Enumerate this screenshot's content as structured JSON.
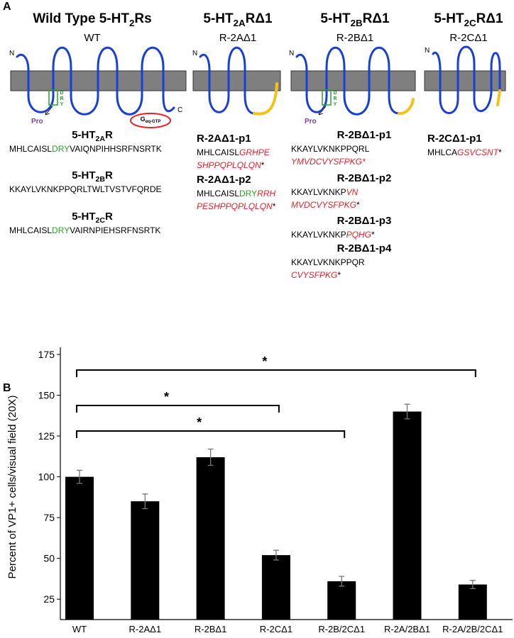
{
  "panel_a": {
    "label": "A",
    "columns": [
      {
        "title": [
          "Wild Type 5-HT",
          "2",
          "Rs"
        ],
        "subtitle": "WT",
        "n": "N",
        "c": "C",
        "pro": "Pro",
        "dry": [
          "D",
          "R",
          "Y"
        ],
        "g_protein": [
          "G",
          "αq-GTP"
        ],
        "entries": [
          {
            "name": [
              "5-HT",
              "2A",
              "R"
            ],
            "lines": [
              [
                "MHLCAISL",
                {
                  "text": "DRY",
                  "color": "#2ca02c"
                },
                "VAIQNPIHHSRFNSRTK"
              ]
            ]
          },
          {
            "name": [
              "5-HT",
              "2B",
              "R"
            ],
            "lines": [
              [
                "KKAYLVKNKPPQRLTWLTVSTVFQRDE"
              ]
            ]
          },
          {
            "name": [
              "5-HT",
              "2C",
              "R"
            ],
            "lines": [
              [
                "MHLCAISL",
                {
                  "text": "DRY",
                  "color": "#2ca02c"
                },
                "VAIRNPIEHSRFNSRTK"
              ]
            ]
          }
        ]
      },
      {
        "title": [
          "5-HT",
          "2A",
          "RΔ1"
        ],
        "subtitle": "R-2AΔ1",
        "n": "N",
        "entries": [
          {
            "name": [
              "R-2AΔ1-p1"
            ],
            "lines": [
              [
                "MHLCAISL",
                {
                  "text": "GRHPE",
                  "color": "#e8202a",
                  "italic": true
                }
              ],
              [
                {
                  "text": "SHPPQPLQLQN",
                  "color": "#e8202a",
                  "italic": true
                },
                "*"
              ]
            ]
          },
          {
            "name": [
              "R-2AΔ1-p2"
            ],
            "lines": [
              [
                "MHLCAISL",
                {
                  "text": "DRY",
                  "color": "#2ca02c"
                },
                {
                  "text": "RRH",
                  "color": "#e8202a",
                  "italic": true
                }
              ],
              [
                {
                  "text": "PESHPPQPLQLQN",
                  "color": "#e8202a",
                  "italic": true
                },
                "*"
              ]
            ]
          }
        ]
      },
      {
        "title": [
          "5-HT",
          "2B",
          "RΔ1"
        ],
        "subtitle": "R-2BΔ1",
        "n": "N",
        "pro": "Pro",
        "dry": [
          "D",
          "R",
          "Y"
        ],
        "entries": [
          {
            "name": [
              "R-2BΔ1-p1"
            ],
            "lines": [
              [
                "KKAYLVKNKPPQRL"
              ],
              [
                {
                  "text": "YMVDCVYSFPKG*",
                  "color": "#e8202a",
                  "italic": true
                }
              ]
            ]
          },
          {
            "name": [
              "R-2BΔ1-p2"
            ],
            "lines": [
              [
                "KKAYLVKNKP",
                {
                  "text": "VN",
                  "color": "#e8202a",
                  "italic": true
                }
              ],
              [
                {
                  "text": "MVDCVYSFPKG",
                  "color": "#e8202a",
                  "italic": true
                },
                "*"
              ]
            ]
          },
          {
            "name": [
              "R-2BΔ1-p3"
            ],
            "lines": [
              [
                "KKAYLVKNKP",
                {
                  "text": "PQHG",
                  "color": "#e8202a",
                  "italic": true
                },
                "*"
              ]
            ]
          },
          {
            "name": [
              "R-2BΔ1-p4"
            ],
            "lines": [
              [
                "KKAYLVKNKPPQR"
              ],
              [
                {
                  "text": "CVYSFPKG",
                  "color": "#e8202a",
                  "italic": true
                },
                "*"
              ]
            ]
          }
        ]
      },
      {
        "title": [
          "5-HT",
          "2C",
          "RΔ1"
        ],
        "subtitle": "R-2CΔ1",
        "n": "N",
        "entries": [
          {
            "name": [
              "R-2CΔ1-p1"
            ],
            "lines": [
              [
                "MHLCA",
                {
                  "text": "GSVCSNT",
                  "color": "#e8202a",
                  "italic": true
                },
                "*"
              ]
            ]
          }
        ]
      }
    ]
  },
  "chart_data": {
    "type": "bar",
    "label": "B",
    "ylabel": "Percent of VP1+ cells/visual field (20X)",
    "categories": [
      "WT",
      "R-2AΔ1",
      "R-2BΔ1",
      "R-2CΔ1",
      "R-2B/2CΔ1",
      "R-2A/2BΔ1",
      "R-2A/2B/2CΔ1"
    ],
    "values": [
      100,
      85,
      112,
      52,
      36,
      140,
      34
    ],
    "errors": [
      4,
      4.5,
      5,
      3,
      3,
      4.5,
      2.5
    ],
    "color": "#000000",
    "ylim": [
      12.5,
      175
    ],
    "yticks": [
      25,
      50,
      75,
      100,
      125,
      150,
      175
    ],
    "significance": [
      {
        "from": "WT",
        "to": "R-2A/2B/2CΔ1",
        "label": "*"
      },
      {
        "from": "WT",
        "to": "R-2CΔ1",
        "label": "*"
      },
      {
        "from": "WT",
        "to": "R-2B/2CΔ1",
        "label": "*"
      }
    ]
  }
}
